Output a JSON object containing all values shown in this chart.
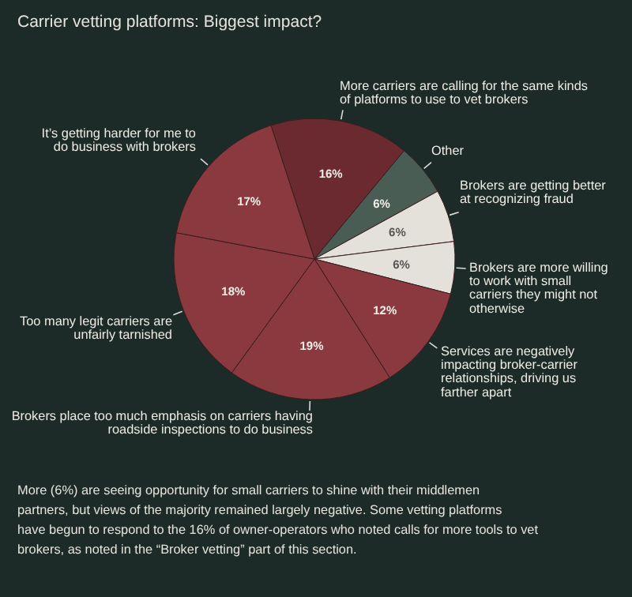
{
  "chart_data": {
    "type": "pie",
    "title": "Carrier vetting platforms: Biggest impact?",
    "categories": [
      "More carriers are calling for the same kinds of platforms to use to vet brokers",
      "Other",
      "Brokers are getting better at recognizing fraud",
      "Brokers are more willing to work with small carriers they might not otherwise",
      "Services are negatively impacting broker-carrier relationships, driving us farther apart",
      "Brokers place too much emphasis on carriers having roadside inspections to do business",
      "Too many legit carriers are unfairly tarnished",
      "It’s getting harder for me to do business with brokers"
    ],
    "values": [
      16,
      6,
      6,
      6,
      12,
      19,
      18,
      17
    ],
    "value_labels": [
      "16%",
      "6%",
      "6%",
      "6%",
      "12%",
      "19%",
      "18%",
      "17%"
    ],
    "colors": [
      "#6b2a2f",
      "#4a5d55",
      "#e3e1d9",
      "#e3e1d9",
      "#8a3a3f",
      "#8a3a3f",
      "#8a3a3f",
      "#8a3a3f"
    ],
    "annotations": [
      "More (6%) are seeing opportunity for small carriers to shine with their middlemen partners, but views of the majority remained largely negative. Some vetting platforms have begun to respond to the 16% of owner-operators who noted calls for more tools to vet brokers, as noted in the “Broker vetting” part of this section."
    ]
  }
}
